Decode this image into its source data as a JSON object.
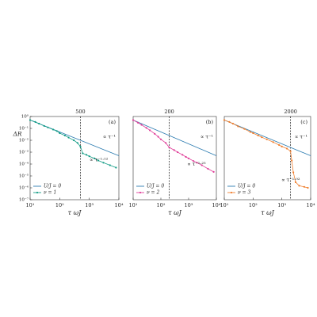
{
  "chart_data": [
    {
      "type": "line",
      "panel_label": "(a)",
      "vline": 500,
      "log": true,
      "xlim": [
        10,
        10000
      ],
      "ylim": [
        1e-07,
        1
      ],
      "xticks": [
        {
          "value": 10,
          "label": "10¹"
        },
        {
          "value": 100,
          "label": "10²"
        },
        {
          "value": 1000,
          "label": "10³"
        },
        {
          "value": 10000,
          "label": "10⁴"
        }
      ],
      "yticks": [
        {
          "value": 1,
          "label": "10⁰"
        },
        {
          "value": 0.1,
          "label": "10⁻¹"
        },
        {
          "value": 0.01,
          "label": "10⁻²"
        },
        {
          "value": 0.001,
          "label": "10⁻³"
        },
        {
          "value": 0.0001,
          "label": "10⁻⁴"
        },
        {
          "value": 1e-05,
          "label": "10⁻⁵"
        },
        {
          "value": 1e-06,
          "label": "10⁻⁶"
        },
        {
          "value": 1e-07,
          "label": "10⁻⁷"
        }
      ],
      "x_label": "τ ωJ",
      "y_label": "ΔR",
      "annotations": [
        "∝ τ⁻¹",
        "∝ τ⁻¹·¹²"
      ],
      "series": [
        {
          "name": "U/J = 0",
          "color": "#2b7bb0",
          "markers": false,
          "x": [
            10,
            100,
            1000,
            10000
          ],
          "values": [
            0.5,
            0.05,
            0.005,
            0.0005
          ]
        },
        {
          "name": "ν = 1",
          "color": "#159d87",
          "markers": true,
          "x": [
            10,
            15,
            20,
            30,
            40,
            60,
            80,
            100,
            150,
            200,
            300,
            400,
            500,
            600,
            800,
            1000,
            1500,
            2000,
            3000,
            5000,
            8000
          ],
          "values": [
            0.5,
            0.35,
            0.25,
            0.16,
            0.12,
            0.08,
            0.06,
            0.04,
            0.025,
            0.017,
            0.01,
            0.006,
            0.003,
            0.0008,
            0.0006,
            0.00045,
            0.0003,
            0.0002,
            0.00013,
            8e-05,
            5e-05
          ]
        }
      ]
    },
    {
      "type": "line",
      "panel_label": "(b)",
      "vline": 200,
      "log": true,
      "xlim": [
        10,
        10000
      ],
      "ylim": [
        1e-07,
        1
      ],
      "xticks": [
        {
          "value": 10,
          "label": "10¹"
        },
        {
          "value": 100,
          "label": "10²"
        },
        {
          "value": 1000,
          "label": "10³"
        },
        {
          "value": 10000,
          "label": "10⁴"
        }
      ],
      "x_label": "τ ωJ",
      "annotations": [
        "∝ τ⁻¹",
        "∝ τ⁻¹·²⁵"
      ],
      "series": [
        {
          "name": "U/J = 0",
          "color": "#2b7bb0",
          "markers": false,
          "x": [
            10,
            100,
            1000,
            10000
          ],
          "values": [
            0.5,
            0.05,
            0.005,
            0.0005
          ]
        },
        {
          "name": "ν = 2",
          "color": "#e0409a",
          "markers": true,
          "x": [
            10,
            15,
            20,
            30,
            40,
            60,
            80,
            100,
            150,
            200,
            300,
            400,
            600,
            800,
            1000,
            1500,
            2000,
            3000,
            5000,
            8000
          ],
          "values": [
            0.5,
            0.3,
            0.2,
            0.11,
            0.07,
            0.035,
            0.02,
            0.012,
            0.006,
            0.0025,
            0.0015,
            0.001,
            0.0006,
            0.0004,
            0.0003,
            0.00018,
            0.00013,
            8e-05,
            4e-05,
            2.2e-05
          ]
        }
      ]
    },
    {
      "type": "line",
      "panel_label": "(c)",
      "vline": 2000,
      "log": true,
      "xlim": [
        10,
        10000
      ],
      "ylim": [
        1e-07,
        1
      ],
      "xticks": [
        {
          "value": 10,
          "label": "10¹"
        },
        {
          "value": 100,
          "label": "10²"
        },
        {
          "value": 1000,
          "label": "10³"
        },
        {
          "value": 10000,
          "label": "10⁴"
        }
      ],
      "x_label": "τ ωJ",
      "annotations": [
        "∝ τ⁻¹",
        "∝ τ⁻¹·⁰²"
      ],
      "series": [
        {
          "name": "U/J = 0",
          "color": "#2b7bb0",
          "markers": false,
          "x": [
            10,
            100,
            1000,
            10000
          ],
          "values": [
            0.5,
            0.05,
            0.005,
            0.0005
          ]
        },
        {
          "name": "ν = 3",
          "color": "#f07f2f",
          "markers": true,
          "x": [
            10,
            15,
            20,
            30,
            50,
            80,
            100,
            150,
            200,
            300,
            500,
            800,
            1000,
            1500,
            2000,
            2200,
            2500,
            3000,
            4000,
            6000,
            8000
          ],
          "values": [
            0.5,
            0.35,
            0.25,
            0.15,
            0.09,
            0.05,
            0.04,
            0.025,
            0.018,
            0.012,
            0.007,
            0.004,
            0.003,
            0.002,
            0.0012,
            0.0002,
            2e-05,
            3e-06,
            1.5e-06,
            1.2e-06,
            1e-06
          ]
        }
      ]
    }
  ]
}
